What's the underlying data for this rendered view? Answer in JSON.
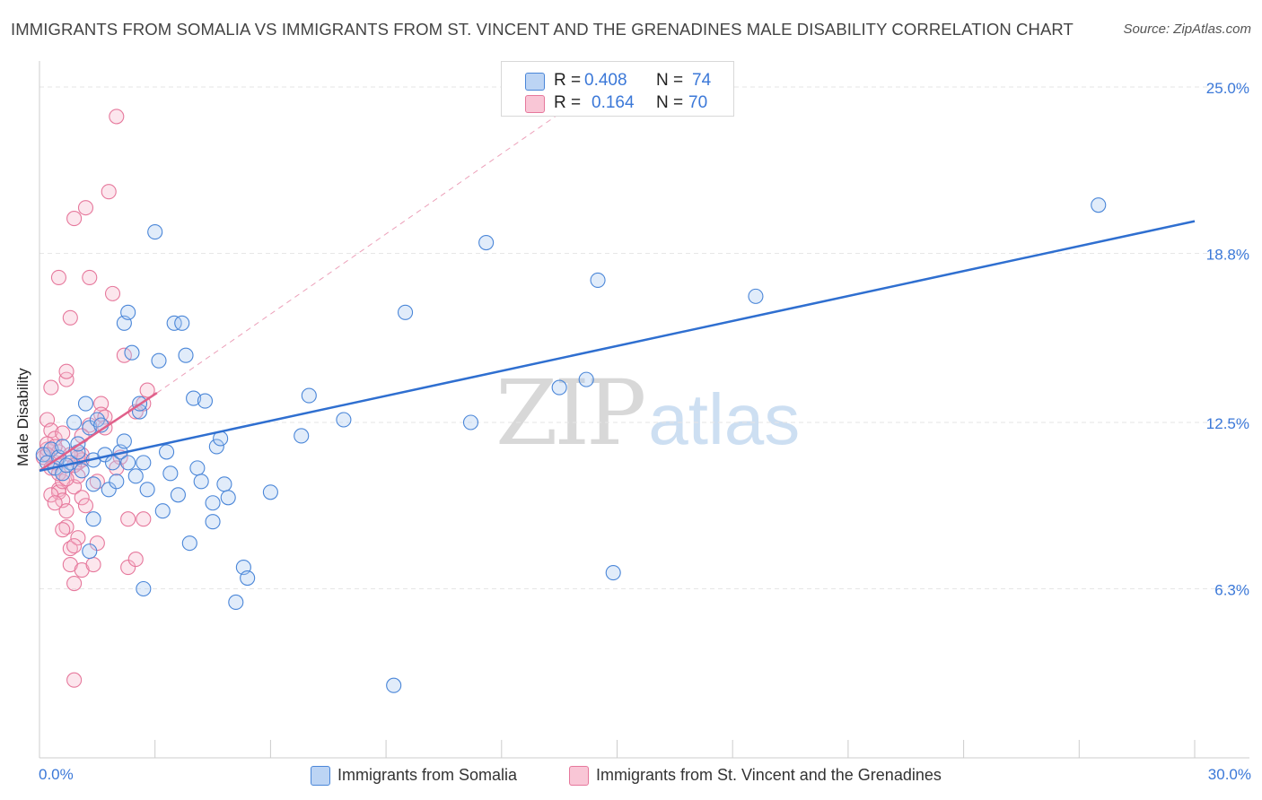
{
  "title": "IMMIGRANTS FROM SOMALIA VS IMMIGRANTS FROM ST. VINCENT AND THE GRENADINES MALE DISABILITY CORRELATION CHART",
  "source": "Source: ZipAtlas.com",
  "watermark": {
    "zip": "ZIP",
    "atlas": "atlas"
  },
  "legend_top": [
    {
      "r_label": "R =",
      "r_value": "0.408",
      "n_label": "N =",
      "n_value": "74"
    },
    {
      "r_label": "R =",
      "r_value": "0.164",
      "n_label": "N =",
      "n_value": "70"
    }
  ],
  "colors": {
    "somalia_fill": "#a8c8f0",
    "somalia_stroke": "#4a86d8",
    "somalia_line": "#2f6fd0",
    "svg_fill": "#f7b8cc",
    "svg_stroke": "#e6789c",
    "svg_line": "#e0608a",
    "grid": "#e6e6e6",
    "tick_label": "#3b78d8"
  },
  "chart_data": {
    "type": "scatter",
    "title": "IMMIGRANTS FROM SOMALIA VS IMMIGRANTS FROM ST. VINCENT AND THE GRENADINES MALE DISABILITY CORRELATION CHART",
    "xlabel": "",
    "ylabel": "Male Disability",
    "xlim": [
      0,
      30
    ],
    "ylim": [
      0,
      26
    ],
    "x_tick_labels": [
      "0.0%",
      "30.0%"
    ],
    "y_ticks": [
      6.3,
      12.5,
      18.8,
      25.0
    ],
    "y_tick_labels": [
      "6.3%",
      "12.5%",
      "18.8%",
      "25.0%"
    ],
    "legend": [
      "Immigrants from Somalia",
      "Immigrants from St. Vincent and the Grenadines"
    ],
    "series": [
      {
        "name": "Immigrants from Somalia",
        "R": 0.408,
        "N": 74,
        "trend": {
          "x": [
            0,
            30
          ],
          "y": [
            10.7,
            20.0
          ],
          "dashed": false
        },
        "points": [
          [
            0.1,
            11.3
          ],
          [
            0.2,
            11.0
          ],
          [
            0.3,
            11.5
          ],
          [
            0.4,
            10.8
          ],
          [
            0.5,
            11.2
          ],
          [
            0.6,
            10.6
          ],
          [
            0.8,
            11.0
          ],
          [
            0.9,
            12.5
          ],
          [
            1.0,
            11.4
          ],
          [
            1.1,
            10.7
          ],
          [
            1.2,
            13.2
          ],
          [
            1.3,
            12.3
          ],
          [
            1.4,
            11.1
          ],
          [
            1.5,
            12.6
          ],
          [
            1.6,
            12.4
          ],
          [
            1.7,
            11.3
          ],
          [
            1.4,
            10.2
          ],
          [
            1.8,
            10.0
          ],
          [
            1.3,
            7.7
          ],
          [
            1.4,
            8.9
          ],
          [
            2.0,
            10.3
          ],
          [
            2.1,
            11.4
          ],
          [
            2.2,
            11.8
          ],
          [
            2.3,
            11.0
          ],
          [
            2.4,
            15.1
          ],
          [
            2.2,
            16.2
          ],
          [
            2.3,
            16.6
          ],
          [
            2.5,
            10.5
          ],
          [
            2.6,
            12.9
          ],
          [
            2.7,
            11.0
          ],
          [
            2.6,
            13.2
          ],
          [
            2.8,
            10.0
          ],
          [
            2.7,
            6.3
          ],
          [
            3.0,
            19.6
          ],
          [
            3.1,
            14.8
          ],
          [
            3.2,
            9.2
          ],
          [
            3.3,
            11.4
          ],
          [
            3.4,
            10.6
          ],
          [
            3.5,
            16.2
          ],
          [
            3.6,
            9.8
          ],
          [
            3.7,
            16.2
          ],
          [
            3.8,
            15.0
          ],
          [
            3.9,
            8.0
          ],
          [
            4.0,
            13.4
          ],
          [
            4.1,
            10.8
          ],
          [
            4.2,
            10.3
          ],
          [
            4.3,
            13.3
          ],
          [
            4.5,
            8.8
          ],
          [
            4.5,
            9.5
          ],
          [
            4.6,
            11.6
          ],
          [
            4.7,
            11.9
          ],
          [
            4.8,
            10.2
          ],
          [
            4.9,
            9.7
          ],
          [
            5.1,
            5.8
          ],
          [
            5.3,
            7.1
          ],
          [
            5.4,
            6.7
          ],
          [
            6.0,
            9.9
          ],
          [
            6.8,
            12.0
          ],
          [
            7.0,
            13.5
          ],
          [
            7.9,
            12.6
          ],
          [
            9.5,
            16.6
          ],
          [
            9.2,
            2.7
          ],
          [
            11.2,
            12.5
          ],
          [
            11.6,
            19.2
          ],
          [
            13.5,
            13.8
          ],
          [
            14.2,
            14.1
          ],
          [
            14.5,
            17.8
          ],
          [
            14.9,
            6.9
          ],
          [
            18.6,
            17.2
          ],
          [
            27.5,
            20.6
          ],
          [
            0.6,
            11.6
          ],
          [
            0.7,
            10.9
          ],
          [
            1.0,
            11.7
          ],
          [
            1.9,
            11.0
          ]
        ]
      },
      {
        "name": "Immigrants from St. Vincent and the Grenadines",
        "R": 0.164,
        "N": 70,
        "trend": {
          "x": [
            0,
            3.05
          ],
          "y": [
            10.7,
            13.6
          ],
          "dashed": false
        },
        "trend_extension": {
          "x": [
            3.05,
            15.0
          ],
          "y": [
            13.6,
            25.5
          ],
          "dashed": true
        },
        "points": [
          [
            0.1,
            11.2
          ],
          [
            0.2,
            11.5
          ],
          [
            0.2,
            12.6
          ],
          [
            0.3,
            13.8
          ],
          [
            0.3,
            12.2
          ],
          [
            0.4,
            11.9
          ],
          [
            0.4,
            11.0
          ],
          [
            0.5,
            10.0
          ],
          [
            0.5,
            9.9
          ],
          [
            0.5,
            11.4
          ],
          [
            0.6,
            10.3
          ],
          [
            0.6,
            9.6
          ],
          [
            0.7,
            9.2
          ],
          [
            0.7,
            8.6
          ],
          [
            0.8,
            7.8
          ],
          [
            0.8,
            7.2
          ],
          [
            0.9,
            6.5
          ],
          [
            0.9,
            10.1
          ],
          [
            1.0,
            11.0
          ],
          [
            1.0,
            10.5
          ],
          [
            1.1,
            9.7
          ],
          [
            1.1,
            11.3
          ],
          [
            1.1,
            11.1
          ],
          [
            0.5,
            17.9
          ],
          [
            0.7,
            14.1
          ],
          [
            0.7,
            14.4
          ],
          [
            0.8,
            16.4
          ],
          [
            0.9,
            20.1
          ],
          [
            1.0,
            11.2
          ],
          [
            1.1,
            7.0
          ],
          [
            1.2,
            20.5
          ],
          [
            1.3,
            17.9
          ],
          [
            1.3,
            12.4
          ],
          [
            1.4,
            7.2
          ],
          [
            1.5,
            10.3
          ],
          [
            1.6,
            13.2
          ],
          [
            1.6,
            12.8
          ],
          [
            1.7,
            12.7
          ],
          [
            1.7,
            12.3
          ],
          [
            1.8,
            21.1
          ],
          [
            1.9,
            17.3
          ],
          [
            2.0,
            23.9
          ],
          [
            2.1,
            11.2
          ],
          [
            2.2,
            15.0
          ],
          [
            2.3,
            8.9
          ],
          [
            2.3,
            7.1
          ],
          [
            2.5,
            12.9
          ],
          [
            2.5,
            7.4
          ],
          [
            2.7,
            13.2
          ],
          [
            2.7,
            8.9
          ],
          [
            2.8,
            13.7
          ],
          [
            0.9,
            2.9
          ],
          [
            0.2,
            11.7
          ],
          [
            0.3,
            10.8
          ],
          [
            0.4,
            11.6
          ],
          [
            0.5,
            10.6
          ],
          [
            0.6,
            12.1
          ],
          [
            0.7,
            10.4
          ],
          [
            0.8,
            11.3
          ],
          [
            0.9,
            10.9
          ],
          [
            1.0,
            8.2
          ],
          [
            1.1,
            12.0
          ],
          [
            1.2,
            9.4
          ],
          [
            0.3,
            9.8
          ],
          [
            0.4,
            9.5
          ],
          [
            0.6,
            8.5
          ],
          [
            0.9,
            7.9
          ],
          [
            1.5,
            8.0
          ],
          [
            2.0,
            10.8
          ],
          [
            0.2,
            11.3
          ]
        ]
      }
    ]
  }
}
